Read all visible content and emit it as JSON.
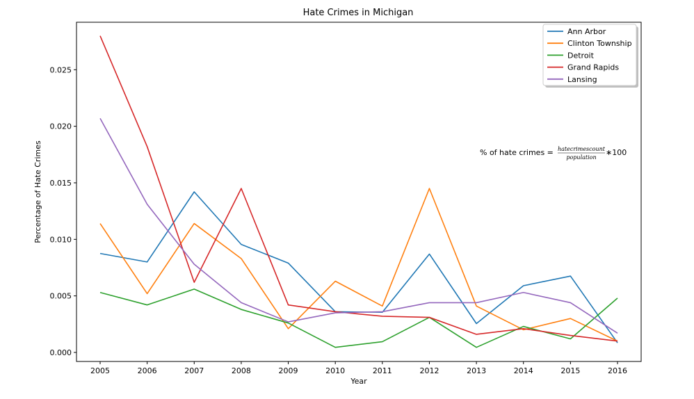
{
  "chart_data": {
    "type": "line",
    "title": "Hate Crimes in Michigan",
    "xlabel": "Year",
    "ylabel": "Percentage of Hate Crimes",
    "x": [
      2005,
      2006,
      2007,
      2008,
      2009,
      2010,
      2011,
      2012,
      2013,
      2014,
      2015,
      2016
    ],
    "x_tick_labels": [
      "2005",
      "2006",
      "2007",
      "2008",
      "2009",
      "2010",
      "2011",
      "2012",
      "2013",
      "2014",
      "2015",
      "2016"
    ],
    "ylim": [
      -0.0008,
      0.0292
    ],
    "y_ticks": [
      0.0,
      0.005,
      0.01,
      0.015,
      0.02,
      0.025
    ],
    "y_tick_labels": [
      "0.000",
      "0.005",
      "0.010",
      "0.015",
      "0.020",
      "0.025"
    ],
    "grid": false,
    "legend_position": "top-right",
    "series": [
      {
        "name": "Ann Arbor",
        "color": "#1f77b4",
        "values": [
          0.00875,
          0.008,
          0.0142,
          0.00955,
          0.0079,
          0.0036,
          0.00355,
          0.0087,
          0.00255,
          0.0059,
          0.00675,
          0.00085
        ]
      },
      {
        "name": "Clinton Township",
        "color": "#ff7f0e",
        "values": [
          0.0114,
          0.0052,
          0.0114,
          0.0083,
          0.0021,
          0.0063,
          0.0041,
          0.0145,
          0.0041,
          0.002,
          0.003,
          0.001
        ]
      },
      {
        "name": "Detroit",
        "color": "#2ca02c",
        "values": [
          0.0053,
          0.0042,
          0.0056,
          0.0038,
          0.0026,
          0.00045,
          0.00095,
          0.0031,
          0.00045,
          0.0023,
          0.0012,
          0.0048
        ]
      },
      {
        "name": "Grand Rapids",
        "color": "#d62728",
        "values": [
          0.028,
          0.0182,
          0.0062,
          0.0145,
          0.0042,
          0.0036,
          0.0032,
          0.0031,
          0.0016,
          0.0021,
          0.0015,
          0.001
        ]
      },
      {
        "name": "Lansing",
        "color": "#9467bd",
        "values": [
          0.0207,
          0.0131,
          0.0078,
          0.0044,
          0.0027,
          0.0035,
          0.0036,
          0.0044,
          0.0044,
          0.0053,
          0.0044,
          0.0017
        ]
      }
    ],
    "annotation": {
      "prefix": "% of hate crimes = ",
      "numerator": "hatecrimescount",
      "denominator": "population",
      "suffix": "∗100"
    }
  }
}
